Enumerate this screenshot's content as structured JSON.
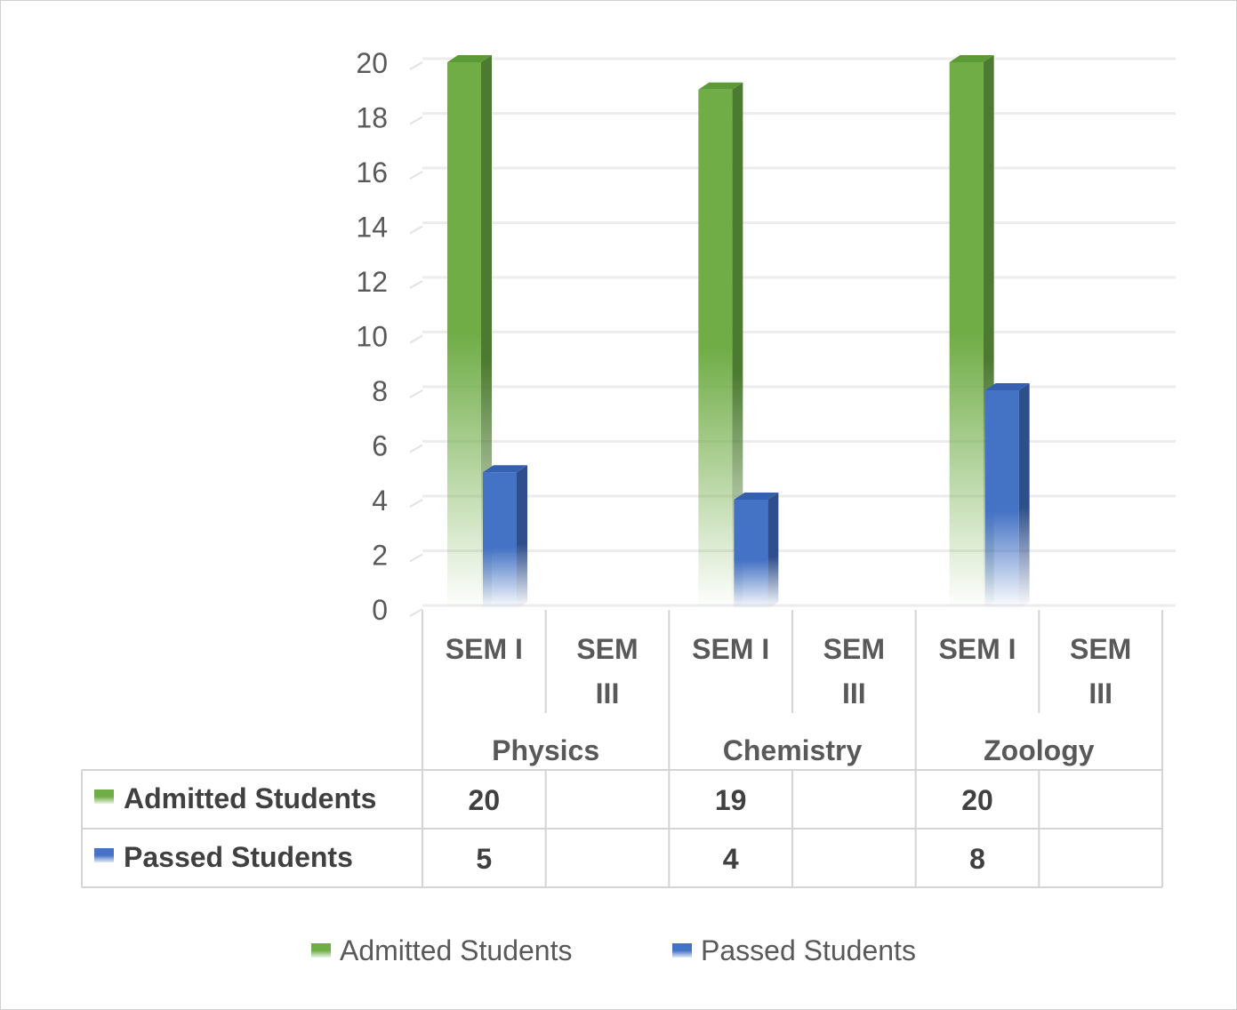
{
  "chart_data": {
    "type": "bar",
    "title": "",
    "xlabel": "",
    "ylabel": "",
    "ylim": [
      0,
      20
    ],
    "yticks": [
      0,
      2,
      4,
      6,
      8,
      10,
      12,
      14,
      16,
      18,
      20
    ],
    "grid": true,
    "legend_position": "bottom",
    "groups": [
      {
        "name": "Physics",
        "categories": [
          "SEM I",
          "SEM III"
        ]
      },
      {
        "name": "Chemistry",
        "categories": [
          "SEM I",
          "SEM III"
        ]
      },
      {
        "name": "Zoology",
        "categories": [
          "SEM I",
          "SEM III"
        ]
      }
    ],
    "categories": [
      "SEM I",
      "SEM III",
      "SEM I",
      "SEM III",
      "SEM I",
      "SEM III"
    ],
    "series": [
      {
        "name": "Admitted Students",
        "values": [
          20,
          null,
          19,
          null,
          20,
          null
        ],
        "color": "#70ad47"
      },
      {
        "name": "Passed Students",
        "values": [
          5,
          null,
          4,
          null,
          8,
          null
        ],
        "color": "#4472c4"
      }
    ],
    "data_table": true
  }
}
